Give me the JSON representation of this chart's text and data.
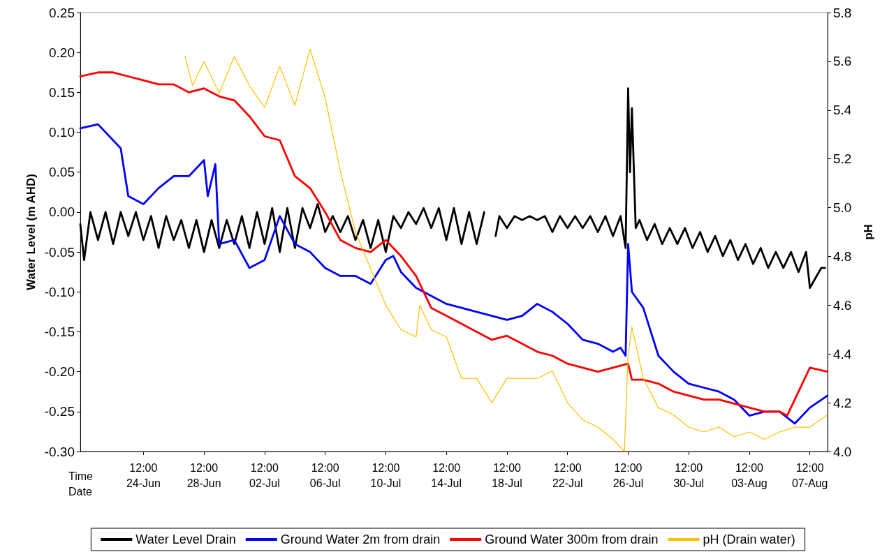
{
  "chart_data": {
    "type": "line",
    "ylabel": "Water Level (m AHD)",
    "y2label": "pH",
    "xlabel": "Time\nDate",
    "xlim": [
      "--06-20T08:00",
      "--08-08T16:00"
    ],
    "xticks": [
      {
        "value": "--06-24T12:00",
        "label": "12:00\n24-Jun"
      },
      {
        "value": "--06-28T12:00",
        "label": "12:00\n28-Jun"
      },
      {
        "value": "--07-02T12:00",
        "label": "12:00\n02-Jul"
      },
      {
        "value": "--07-06T12:00",
        "label": "12:00\n06-Jul"
      },
      {
        "value": "--07-10T12:00",
        "label": "12:00\n10-Jul"
      },
      {
        "value": "--07-14T12:00",
        "label": "12:00\n14-Jul"
      },
      {
        "value": "--07-18T12:00",
        "label": "12:00\n18-Jul"
      },
      {
        "value": "--07-22T12:00",
        "label": "12:00\n22-Jul"
      },
      {
        "value": "--07-26T12:00",
        "label": "12:00\n26-Jul"
      },
      {
        "value": "--07-30T12:00",
        "label": "12:00\n30-Jul"
      },
      {
        "value": "--08-03T12:00",
        "label": "12:00\n03-Aug"
      },
      {
        "value": "--08-07T12:00",
        "label": "12:00\n07-Aug"
      }
    ],
    "ylim": [
      -0.3,
      0.25
    ],
    "yticks": [
      {
        "value": -0.3,
        "label": "-0.30"
      },
      -0.25,
      {
        "value": -0.2,
        "label": "-0.20"
      },
      -0.15,
      {
        "value": -0.1,
        "label": "-0.10"
      },
      -0.05,
      {
        "value": 0,
        "label": "0.00"
      },
      0.05,
      {
        "value": 0.1,
        "label": "0.10"
      },
      0.15,
      {
        "value": 0.2,
        "label": "0.20"
      },
      0.25
    ],
    "y2lim": [
      4.0,
      5.8
    ],
    "y2ticks": [
      {
        "value": 4.0,
        "label": "4.0"
      },
      4.2,
      4.4,
      4.6,
      4.8,
      {
        "value": 5.0,
        "label": "5.0"
      },
      5.2,
      5.4,
      5.6,
      5.8
    ],
    "grid": false,
    "legend": "bottom",
    "marker": "none",
    "line_style": "solid",
    "series": [
      {
        "name": "Water Level Drain",
        "color": "#000000",
        "x": [
          "--06-20T08:00",
          "--06-20T14:00",
          "--06-21T00:00",
          "--06-21T12:00",
          "--06-22T00:00",
          "--06-22T12:00",
          "--06-23T00:00",
          "--06-23T12:00",
          "--06-24T00:00",
          "--06-24T12:00",
          "--06-25T00:00",
          "--06-25T12:00",
          "--06-26T00:00",
          "--06-26T12:00",
          "--06-27T00:00",
          "--06-27T12:00",
          "--06-28T00:00",
          "--06-28T12:00",
          "--06-29T00:00",
          "--06-29T12:00",
          "--06-30T00:00",
          "--06-30T12:00",
          "--07-01T00:00",
          "--07-01T12:00",
          "--07-02T00:00",
          "--07-02T12:00",
          "--07-03T00:00",
          "--07-03T12:00",
          "--07-04T00:00",
          "--07-04T12:00",
          "--07-05T00:00",
          "--07-05T12:00",
          "--07-06T00:00",
          "--07-06T12:00",
          "--07-07T00:00",
          "--07-07T12:00",
          "--07-08T00:00",
          "--07-08T12:00",
          "--07-09T00:00",
          "--07-09T12:00",
          "--07-10T00:00",
          "--07-10T12:00",
          "--07-11T00:00",
          "--07-11T12:00",
          "--07-12T00:00",
          "--07-12T12:00",
          "--07-13T00:00",
          "--07-13T12:00",
          "--07-14T00:00",
          "--07-14T12:00",
          "--07-15T00:00",
          "--07-15T12:00",
          "--07-16T00:00",
          "--07-16T12:00",
          "--07-17T00:00",
          "--07-17T12:00",
          "--07-17T18:00",
          "--07-18T00:00",
          "--07-18T12:00",
          "--07-19T00:00",
          "--07-19T12:00",
          "--07-20T00:00",
          "--07-20T12:00",
          "--07-21T00:00",
          "--07-21T12:00",
          "--07-22T00:00",
          "--07-22T12:00",
          "--07-23T00:00",
          "--07-23T12:00",
          "--07-24T00:00",
          "--07-24T12:00",
          "--07-25T00:00",
          "--07-25T12:00",
          "--07-26T00:00",
          "--07-26T08:00",
          "--07-26T12:00",
          "--07-26T15:00",
          "--07-26T18:00",
          "--07-27T00:00",
          "--07-27T06:00",
          "--07-27T18:00",
          "--07-28T06:00",
          "--07-28T18:00",
          "--07-29T06:00",
          "--07-29T18:00",
          "--07-30T06:00",
          "--07-30T18:00",
          "--07-31T06:00",
          "--07-31T18:00",
          "--08-01T06:00",
          "--08-01T18:00",
          "--08-02T06:00",
          "--08-02T18:00",
          "--08-03T06:00",
          "--08-03T18:00",
          "--08-04T06:00",
          "--08-04T18:00",
          "--08-05T06:00",
          "--08-05T18:00",
          "--08-06T06:00",
          "--08-06T18:00",
          "--08-07T06:00",
          "--08-07T12:00",
          "--08-08T06:00",
          "--08-08T12:00"
        ],
        "values": [
          -0.015,
          -0.06,
          0.0,
          -0.035,
          0.0,
          -0.04,
          0.0,
          -0.03,
          0.0,
          -0.035,
          -0.005,
          -0.045,
          -0.005,
          -0.035,
          -0.01,
          -0.045,
          -0.01,
          -0.05,
          -0.01,
          -0.045,
          -0.01,
          -0.04,
          -0.005,
          -0.045,
          0.0,
          -0.04,
          0.005,
          -0.05,
          0.005,
          -0.045,
          0.005,
          -0.02,
          0.01,
          -0.025,
          -0.005,
          -0.025,
          -0.005,
          -0.035,
          -0.01,
          -0.045,
          -0.01,
          -0.05,
          -0.005,
          -0.02,
          0.0,
          -0.015,
          0.005,
          -0.02,
          0.005,
          -0.035,
          0.005,
          -0.04,
          0.0,
          -0.04,
          0.0,
          null,
          -0.03,
          -0.005,
          -0.02,
          -0.005,
          -0.01,
          -0.005,
          -0.01,
          -0.005,
          -0.025,
          -0.005,
          -0.02,
          -0.005,
          -0.02,
          -0.005,
          -0.025,
          -0.005,
          -0.03,
          -0.005,
          -0.045,
          0.155,
          0.05,
          0.13,
          -0.02,
          -0.01,
          -0.035,
          -0.015,
          -0.04,
          -0.02,
          -0.04,
          -0.02,
          -0.045,
          -0.025,
          -0.05,
          -0.03,
          -0.055,
          -0.035,
          -0.06,
          -0.04,
          -0.065,
          -0.045,
          -0.07,
          -0.05,
          -0.07,
          -0.05,
          -0.075,
          -0.05,
          -0.095,
          -0.07,
          -0.07
        ]
      },
      {
        "name": "Ground Water 2m from drain",
        "color": "#0000ff",
        "x": [
          "--06-20T08:00",
          "--06-21T12:00",
          "--06-22T12:00",
          "--06-23T00:00",
          "--06-23T12:00",
          "--06-24T12:00",
          "--06-25T12:00",
          "--06-26T12:00",
          "--06-27T12:00",
          "--06-28T12:00",
          "--06-28T18:00",
          "--06-29T06:00",
          "--06-29T12:00",
          "--06-30T12:00",
          "--07-01T12:00",
          "--07-02T12:00",
          "--07-03T12:00",
          "--07-04T12:00",
          "--07-05T12:00",
          "--07-06T12:00",
          "--07-07T12:00",
          "--07-08T12:00",
          "--07-09T12:00",
          "--07-10T12:00",
          "--07-11T00:00",
          "--07-11T12:00",
          "--07-12T12:00",
          "--07-13T12:00",
          "--07-14T12:00",
          "--07-15T12:00",
          "--07-16T12:00",
          "--07-17T12:00",
          "--07-18T12:00",
          "--07-19T12:00",
          "--07-20T12:00",
          "--07-21T12:00",
          "--07-22T12:00",
          "--07-23T12:00",
          "--07-24T12:00",
          "--07-25T12:00",
          "--07-26T00:00",
          "--07-26T08:00",
          "--07-26T12:00",
          "--07-26T18:00",
          "--07-27T12:00",
          "--07-28T12:00",
          "--07-29T12:00",
          "--07-30T12:00",
          "--07-31T12:00",
          "--08-01T12:00",
          "--08-02T12:00",
          "--08-03T12:00",
          "--08-04T12:00",
          "--08-05T12:00",
          "--08-06T12:00",
          "--08-07T12:00",
          "--08-08T16:00"
        ],
        "values": [
          0.105,
          0.11,
          0.09,
          0.08,
          0.02,
          0.01,
          0.03,
          0.045,
          0.045,
          0.065,
          0.02,
          0.06,
          -0.04,
          -0.035,
          -0.07,
          -0.06,
          -0.005,
          -0.04,
          -0.05,
          -0.07,
          -0.08,
          -0.08,
          -0.09,
          -0.06,
          -0.055,
          -0.075,
          -0.095,
          -0.105,
          -0.115,
          -0.12,
          -0.125,
          -0.13,
          -0.135,
          -0.13,
          -0.115,
          -0.125,
          -0.14,
          -0.16,
          -0.165,
          -0.175,
          -0.17,
          -0.18,
          -0.04,
          -0.1,
          -0.12,
          -0.18,
          -0.2,
          -0.215,
          -0.22,
          -0.225,
          -0.235,
          -0.255,
          -0.25,
          -0.25,
          -0.265,
          -0.245,
          -0.23
        ]
      },
      {
        "name": "Ground Water 300m from drain",
        "color": "#ff0000",
        "x": [
          "--06-20T08:00",
          "--06-21T12:00",
          "--06-22T12:00",
          "--06-23T12:00",
          "--06-24T12:00",
          "--06-25T12:00",
          "--06-26T12:00",
          "--06-27T12:00",
          "--06-28T12:00",
          "--06-29T12:00",
          "--06-30T12:00",
          "--07-01T12:00",
          "--07-02T12:00",
          "--07-03T12:00",
          "--07-04T12:00",
          "--07-05T12:00",
          "--07-06T12:00",
          "--07-07T12:00",
          "--07-08T12:00",
          "--07-09T12:00",
          "--07-10T12:00",
          "--07-11T12:00",
          "--07-12T12:00",
          "--07-13T12:00",
          "--07-14T12:00",
          "--07-15T12:00",
          "--07-16T12:00",
          "--07-17T12:00",
          "--07-18T12:00",
          "--07-19T12:00",
          "--07-20T12:00",
          "--07-21T12:00",
          "--07-22T12:00",
          "--07-23T12:00",
          "--07-24T12:00",
          "--07-25T12:00",
          "--07-26T12:00",
          "--07-26T18:00",
          "--07-27T12:00",
          "--07-28T12:00",
          "--07-29T12:00",
          "--07-30T12:00",
          "--07-31T12:00",
          "--08-01T12:00",
          "--08-02T12:00",
          "--08-03T12:00",
          "--08-04T12:00",
          "--08-05T12:00",
          "--08-06T00:00",
          "--08-06T12:00",
          "--08-07T12:00",
          "--08-08T16:00"
        ],
        "values": [
          0.17,
          0.175,
          0.175,
          0.17,
          0.165,
          0.16,
          0.16,
          0.15,
          0.155,
          0.145,
          0.14,
          0.12,
          0.095,
          0.09,
          0.045,
          0.03,
          0.0,
          -0.035,
          -0.045,
          -0.05,
          -0.035,
          -0.055,
          -0.08,
          -0.12,
          -0.13,
          -0.14,
          -0.15,
          -0.16,
          -0.155,
          -0.165,
          -0.175,
          -0.18,
          -0.19,
          -0.195,
          -0.2,
          -0.195,
          -0.19,
          -0.21,
          -0.21,
          -0.215,
          -0.225,
          -0.23,
          -0.235,
          -0.235,
          -0.24,
          -0.245,
          -0.25,
          -0.25,
          -0.255,
          -0.235,
          -0.195,
          -0.2
        ]
      },
      {
        "name": "pH (Drain water)",
        "color": "#ffc000",
        "axis": "y2",
        "x": [
          "--06-27T06:00",
          "--06-27T18:00",
          "--06-28T12:00",
          "--06-29T12:00",
          "--06-30T12:00",
          "--07-01T12:00",
          "--07-02T12:00",
          "--07-03T12:00",
          "--07-04T12:00",
          "--07-05T12:00",
          "--07-06T12:00",
          "--07-07T12:00",
          "--07-08T12:00",
          "--07-09T12:00",
          "--07-10T12:00",
          "--07-11T12:00",
          "--07-12T12:00",
          "--07-12T18:00",
          "--07-13T12:00",
          "--07-14T12:00",
          "--07-15T12:00",
          "--07-16T12:00",
          "--07-17T12:00",
          "--07-18T12:00",
          "--07-19T12:00",
          "--07-20T12:00",
          "--07-21T12:00",
          "--07-22T12:00",
          "--07-23T12:00",
          "--07-24T12:00",
          "--07-25T12:00",
          "--07-26T06:00",
          "--07-26T12:00",
          "--07-26T18:00",
          "--07-27T12:00",
          "--07-28T12:00",
          "--07-29T12:00",
          "--07-30T12:00",
          "--07-31T12:00",
          "--08-01T12:00",
          "--08-02T12:00",
          "--08-03T12:00",
          "--08-04T12:00",
          "--08-05T12:00",
          "--08-06T12:00",
          "--08-07T12:00",
          "--08-08T16:00"
        ],
        "values": [
          5.62,
          5.5,
          5.6,
          5.47,
          5.62,
          5.5,
          5.41,
          5.58,
          5.42,
          5.65,
          5.45,
          5.15,
          4.9,
          4.75,
          4.6,
          4.5,
          4.47,
          4.6,
          4.5,
          4.47,
          4.3,
          4.3,
          4.2,
          4.3,
          4.3,
          4.3,
          4.33,
          4.2,
          4.13,
          4.1,
          4.05,
          4.0,
          4.4,
          4.51,
          4.3,
          4.18,
          4.15,
          4.1,
          4.08,
          4.1,
          4.06,
          4.08,
          4.05,
          4.08,
          4.1,
          4.1,
          4.15
        ]
      }
    ]
  }
}
